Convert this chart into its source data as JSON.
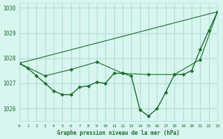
{
  "bg_color": "#d8f5f0",
  "grid_color": "#b0ddd8",
  "line_color": "#1a6b2a",
  "xlabel": "Graphe pression niveau de la mer (hPa)",
  "ylim": [
    1025.5,
    1030.2
  ],
  "xlim": [
    0,
    23
  ],
  "yticks": [
    1026,
    1027,
    1028,
    1029,
    1030
  ],
  "xticks": [
    0,
    1,
    2,
    3,
    4,
    5,
    6,
    7,
    8,
    9,
    10,
    11,
    12,
    13,
    14,
    15,
    16,
    17,
    18,
    19,
    20,
    21,
    22,
    23
  ],
  "series": [
    {
      "x": [
        0,
        1,
        2,
        3,
        4,
        5,
        6,
        7,
        8,
        9,
        10,
        11,
        12,
        13,
        14,
        15,
        16,
        17,
        18,
        19,
        20,
        21,
        22,
        23
      ],
      "y": [
        1027.8,
        1027.6,
        1027.3,
        1027.0,
        1026.7,
        1026.55,
        1026.55,
        1026.85,
        1026.9,
        1027.05,
        1027.0,
        1027.4,
        1027.4,
        1027.3,
        1025.95,
        1025.7,
        1026.0,
        1026.65,
        1027.35,
        1027.35,
        1027.5,
        1028.35,
        1029.1,
        1029.85
      ],
      "marker": "D",
      "markersize": 2.5,
      "linewidth": 1.0,
      "linestyle": "-",
      "has_marker": true
    },
    {
      "x": [
        0,
        3,
        6,
        9,
        12,
        15,
        18,
        21,
        23
      ],
      "y": [
        1027.8,
        1027.3,
        1027.55,
        1027.85,
        1027.4,
        1027.35,
        1027.35,
        1027.95,
        1029.85
      ],
      "marker": null,
      "markersize": 0,
      "linewidth": 0.8,
      "linestyle": "-",
      "has_marker": false
    },
    {
      "x": [
        0,
        23
      ],
      "y": [
        1027.8,
        1029.85
      ],
      "marker": null,
      "markersize": 0,
      "linewidth": 0.8,
      "linestyle": "-",
      "has_marker": false
    },
    {
      "x": [
        0,
        3,
        6,
        9,
        12,
        15,
        18,
        21,
        23
      ],
      "y": [
        1027.8,
        1027.3,
        1027.55,
        1027.85,
        1027.4,
        1027.35,
        1027.35,
        1027.95,
        1029.85
      ],
      "marker": "D",
      "markersize": 2.5,
      "linewidth": 0,
      "linestyle": "None",
      "has_marker": true
    }
  ]
}
